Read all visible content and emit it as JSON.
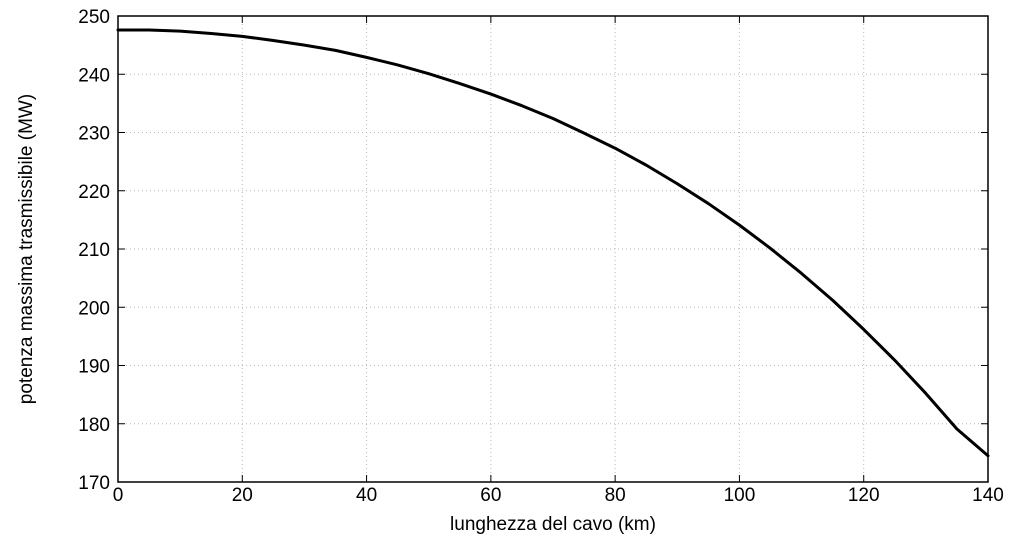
{
  "chart_data": {
    "type": "line",
    "title": "",
    "xlabel": "lunghezza del cavo (km)",
    "ylabel": "potenza massima trasmissibile (MW)",
    "xlim": [
      0,
      140
    ],
    "ylim": [
      170,
      250
    ],
    "xticks": [
      0,
      20,
      40,
      60,
      80,
      100,
      120,
      140
    ],
    "yticks": [
      170,
      180,
      190,
      200,
      210,
      220,
      230,
      240,
      250
    ],
    "grid": true,
    "legend": "none",
    "series": [
      {
        "color": "#000000",
        "x": [
          0,
          5,
          10,
          15,
          20,
          25,
          30,
          35,
          40,
          45,
          50,
          55,
          60,
          65,
          70,
          75,
          80,
          85,
          90,
          95,
          100,
          105,
          110,
          115,
          120,
          125,
          130,
          135,
          140
        ],
        "y": [
          247.6,
          247.6,
          247.4,
          247.0,
          246.5,
          245.8,
          245.0,
          244.1,
          242.9,
          241.6,
          240.1,
          238.4,
          236.6,
          234.6,
          232.4,
          229.9,
          227.3,
          224.4,
          221.2,
          217.8,
          214.1,
          210.1,
          205.8,
          201.2,
          196.2,
          190.9,
          185.2,
          179.1,
          174.5
        ]
      }
    ]
  }
}
